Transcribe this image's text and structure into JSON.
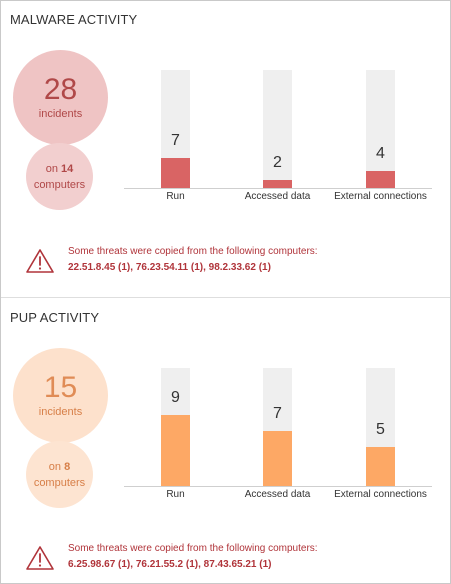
{
  "malware": {
    "title": "MALWARE ACTIVITY",
    "incidents_count": "28",
    "incidents_label": "incidents",
    "computers_prefix": "on",
    "computers_count": "14",
    "computers_label": "computers",
    "warning_text": "Some threats were copied from the following computers:",
    "warning_ips": "22.51.8.45 (1), 76.23.54.11 (1), 98.2.33.62 (1)"
  },
  "pup": {
    "title": "PUP ACTIVITY",
    "incidents_count": "15",
    "incidents_label": "incidents",
    "computers_prefix": "on",
    "computers_count": "8",
    "computers_label": "computers",
    "warning_text": "Some threats were copied from the following computers:",
    "warning_ips": "6.25.98.67 (1), 76.21.55.2 (1), 87.43.65.21 (1)"
  },
  "colors": {
    "malware_accent": "#d96464",
    "pup_accent": "#fda865",
    "warning": "#b0343a",
    "bar_background": "#efefef"
  },
  "icons": {
    "warning": "warning-triangle-icon"
  },
  "chart_data": [
    {
      "type": "bar",
      "categories": [
        "Run",
        "Accessed data",
        "External connections"
      ],
      "values": [
        7,
        2,
        4
      ],
      "value_labels": [
        "7",
        "2",
        "4"
      ],
      "ylim": [
        0,
        28
      ],
      "grid": false
    },
    {
      "type": "bar",
      "categories": [
        "Run",
        "Accessed data",
        "External connections"
      ],
      "values": [
        9,
        7,
        5
      ],
      "value_labels": [
        "9",
        "7",
        "5"
      ],
      "ylim": [
        0,
        15
      ],
      "grid": false
    }
  ]
}
